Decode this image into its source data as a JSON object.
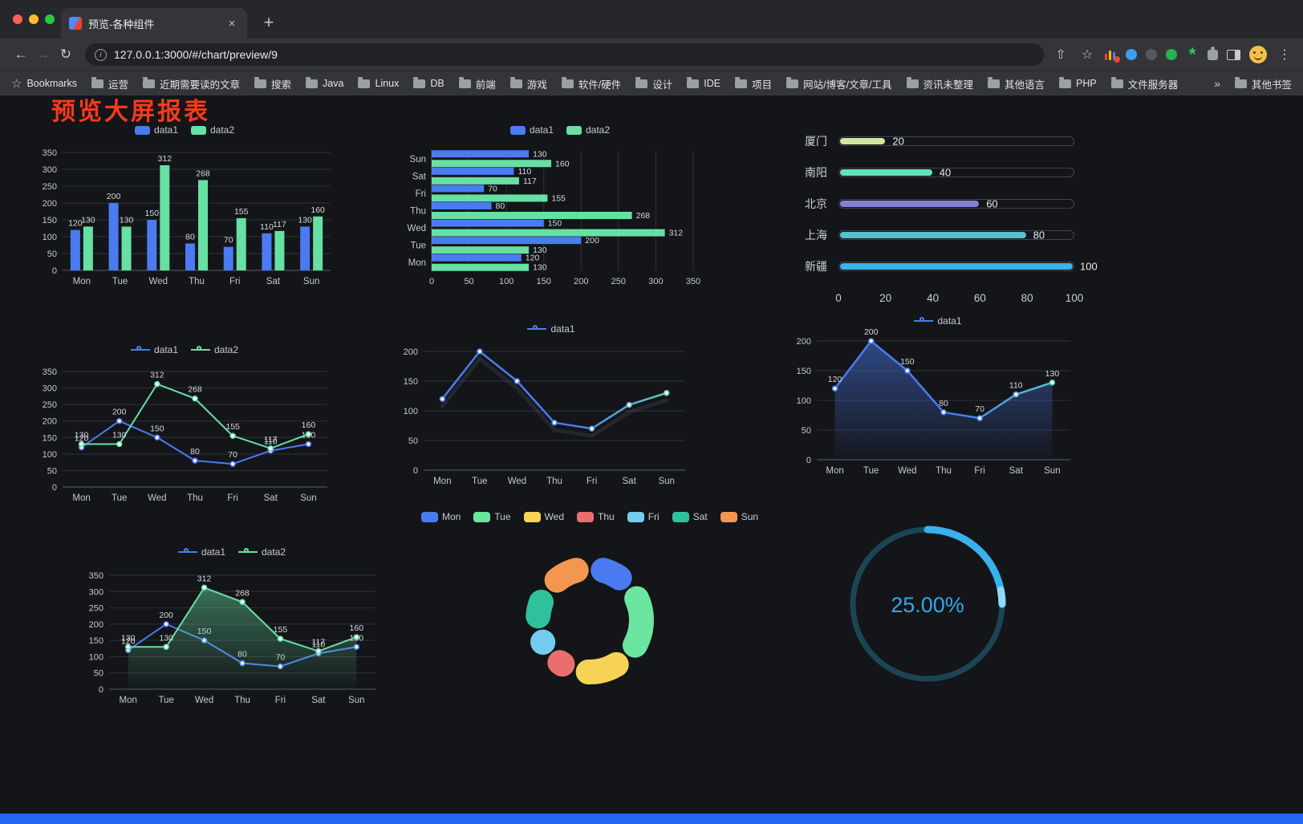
{
  "icons": {
    "close": "×",
    "plus": "+",
    "back": "←",
    "forward": "→",
    "refresh": "↻",
    "share": "⇧",
    "star": "☆",
    "menu": "⋮",
    "overflow": "»",
    "info": "i",
    "asterisk": "*"
  },
  "browser": {
    "tab_title": "预览-各种组件",
    "url": "127.0.0.1:3000/#/chart/preview/9",
    "bookmarks_label": "Bookmarks",
    "bookmarks": [
      "运营",
      "近期需要读的文章",
      "搜索",
      "Java",
      "Linux",
      "DB",
      "前端",
      "游戏",
      "软件/硬件",
      "设计",
      "IDE",
      "项目",
      "网站/博客/文章/工具",
      "资讯未整理",
      "其他语言",
      "PHP",
      "文件服务器"
    ],
    "other_bookmarks": "其他书签"
  },
  "page": {
    "title": "预览大屏报表"
  },
  "theme": {
    "blue": "#4a7bf0",
    "green": "#67e0a3",
    "page_bg": "#141519",
    "grid": "#2d323d",
    "axis": "#565d69",
    "tick_text": "#c2c8d2",
    "label_text": "#d4d8de",
    "legend_text": "#c6cbd4",
    "title_red": "#f53b1d",
    "bottom_bar": "#2468f2"
  },
  "chart_data": [
    {
      "type": "bar",
      "categories": [
        "Mon",
        "Tue",
        "Wed",
        "Thu",
        "Fri",
        "Sat",
        "Sun"
      ],
      "series": [
        {
          "name": "data1",
          "color": "#4a7bf0",
          "values": [
            120,
            200,
            150,
            80,
            70,
            110,
            130
          ]
        },
        {
          "name": "data2",
          "color": "#67e0a3",
          "values": [
            130,
            130,
            312,
            268,
            155,
            117,
            160
          ]
        }
      ],
      "ylim": [
        0,
        350
      ],
      "ystep": 50,
      "legend_position": "top",
      "grid": true,
      "value_labels": true
    },
    {
      "type": "bar-horizontal",
      "categories": [
        "Mon",
        "Tue",
        "Wed",
        "Thu",
        "Fri",
        "Sat",
        "Sun"
      ],
      "display_order": "Sun-top",
      "series": [
        {
          "name": "data1",
          "color": "#4a7bf0",
          "values": [
            120,
            200,
            150,
            80,
            70,
            110,
            130
          ]
        },
        {
          "name": "data2",
          "color": "#67e0a3",
          "values": [
            130,
            130,
            312,
            268,
            155,
            117,
            160
          ]
        }
      ],
      "xlim": [
        0,
        350
      ],
      "xstep": 50,
      "legend_position": "top",
      "grid": true,
      "value_labels": true
    },
    {
      "type": "progress",
      "max": 100,
      "axis_ticks": [
        0,
        20,
        40,
        60,
        80,
        100
      ],
      "rows": [
        {
          "label": "厦门",
          "value": 20,
          "color": "#cfe69c"
        },
        {
          "label": "南阳",
          "value": 40,
          "color": "#63e2b7"
        },
        {
          "label": "北京",
          "value": 60,
          "color": "#8480d8"
        },
        {
          "label": "上海",
          "value": 80,
          "color": "#55c2cd"
        },
        {
          "label": "新疆",
          "value": 100,
          "color": "#3db2e8"
        }
      ]
    },
    {
      "type": "line",
      "categories": [
        "Mon",
        "Tue",
        "Wed",
        "Thu",
        "Fri",
        "Sat",
        "Sun"
      ],
      "series": [
        {
          "name": "data1",
          "color": "#4a7bf0",
          "values": [
            120,
            200,
            150,
            80,
            70,
            110,
            130
          ],
          "labels": true
        },
        {
          "name": "data2",
          "color": "#67e0a3",
          "values": [
            130,
            130,
            312,
            268,
            155,
            117,
            160
          ],
          "labels": true
        }
      ],
      "ylim": [
        0,
        350
      ],
      "ystep": 50,
      "legend_position": "top"
    },
    {
      "type": "line",
      "categories": [
        "Mon",
        "Tue",
        "Wed",
        "Thu",
        "Fri",
        "Sat",
        "Sun"
      ],
      "series": [
        {
          "name": "data1",
          "color": "#4a7bf0",
          "gradient": [
            "#4a7bf0",
            "#4a7bf0",
            "#5fe0b2"
          ],
          "values": [
            120,
            200,
            150,
            80,
            70,
            110,
            130
          ],
          "labels": false
        }
      ],
      "ylim": [
        0,
        200
      ],
      "ystep": 50,
      "legend_position": "top",
      "shadow": true
    },
    {
      "type": "line",
      "categories": [
        "Mon",
        "Tue",
        "Wed",
        "Thu",
        "Fri",
        "Sat",
        "Sun"
      ],
      "series": [
        {
          "name": "data1",
          "color": "#4a7bf0",
          "gradient": [
            "#4a7bf0",
            "#4a7bf0",
            "#58d4c2"
          ],
          "area": true,
          "values": [
            120,
            200,
            150,
            80,
            70,
            110,
            130
          ],
          "labels": true
        }
      ],
      "ylim": [
        0,
        200
      ],
      "ystep": 50,
      "legend_position": "top"
    },
    {
      "type": "line",
      "categories": [
        "Mon",
        "Tue",
        "Wed",
        "Thu",
        "Fri",
        "Sat",
        "Sun"
      ],
      "series": [
        {
          "name": "data1",
          "color": "#4a7bf0",
          "values": [
            120,
            200,
            150,
            80,
            70,
            110,
            130
          ],
          "labels": true
        },
        {
          "name": "data2",
          "color": "#67e0a3",
          "area": true,
          "values": [
            130,
            130,
            312,
            268,
            155,
            117,
            160
          ],
          "labels": true
        }
      ],
      "ylim": [
        0,
        350
      ],
      "ystep": 50,
      "legend_position": "top"
    },
    {
      "type": "donut",
      "legend_position": "top",
      "items": [
        {
          "name": "Mon",
          "value": 120,
          "color": "#4a7bf0"
        },
        {
          "name": "Tue",
          "value": 200,
          "color": "#6ce5a1"
        },
        {
          "name": "Wed",
          "value": 150,
          "color": "#f6d354"
        },
        {
          "name": "Thu",
          "value": 80,
          "color": "#eb6e6e"
        },
        {
          "name": "Fri",
          "value": 70,
          "color": "#74cdf0"
        },
        {
          "name": "Sat",
          "value": 110,
          "color": "#2fc19b"
        },
        {
          "name": "Sun",
          "value": 130,
          "color": "#f29650"
        }
      ]
    },
    {
      "type": "gauge",
      "value": 25,
      "label": "25.00%",
      "color": "#38b2ec",
      "highlight": "#8fd9f9",
      "track": "#1c4553",
      "text_color": "#35a7e8"
    }
  ]
}
